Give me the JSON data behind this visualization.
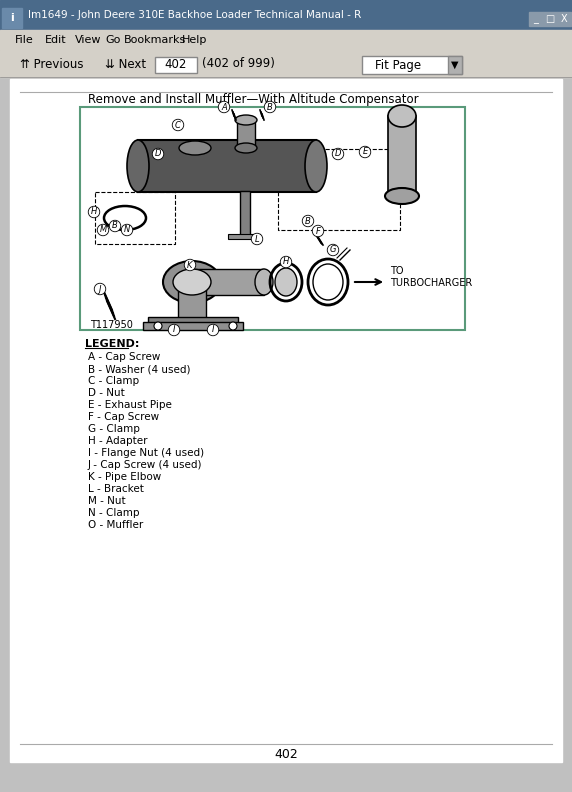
{
  "title_bar": "lm1649 - John Deere 310E Backhoe Loader Technical Manual - R",
  "menu_items": [
    "File",
    "Edit",
    "View",
    "Go",
    "Bookmarks",
    "Help"
  ],
  "nav_page": "402",
  "nav_total": "999",
  "page_num": "402",
  "section_title": "Remove and Install Muffler—With Altitude Compensator",
  "figure_num": "T117950",
  "turbo_label": "TO\nTURBOCHARGER",
  "legend_title": "LEGEND:",
  "legend_items": [
    "A - Cap Screw",
    "B - Washer (4 used)",
    "C - Clamp",
    "D - Nut",
    "E - Exhaust Pipe",
    "F - Cap Screw",
    "G - Clamp",
    "H - Adapter",
    "I - Flange Nut (4 used)",
    "J - Cap Screw (4 used)",
    "K - Pipe Elbow",
    "L - Bracket",
    "M - Nut",
    "N - Clamp",
    "O - Muffler"
  ],
  "bg_color": "#c0c0c0",
  "window_bg": "#d4d0c8",
  "page_bg": "#ffffff",
  "diagram_border_color": "#5a9a7a",
  "titlebar_bg": "#4a6a8a",
  "titlebar_text": "#ffffff",
  "menubar_bg": "#d4d0c8",
  "toolbar_bg": "#d4d0c8"
}
